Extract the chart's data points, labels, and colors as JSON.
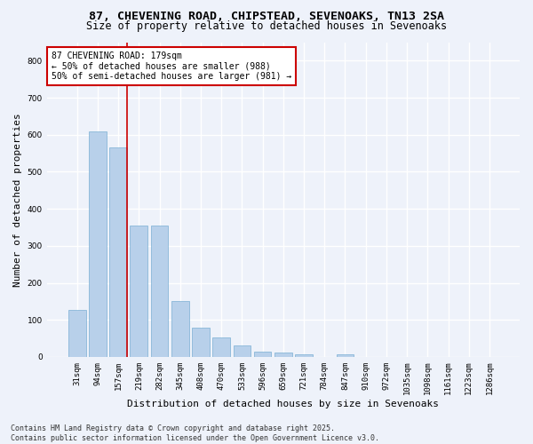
{
  "title_line1": "87, CHEVENING ROAD, CHIPSTEAD, SEVENOAKS, TN13 2SA",
  "title_line2": "Size of property relative to detached houses in Sevenoaks",
  "xlabel": "Distribution of detached houses by size in Sevenoaks",
  "ylabel": "Number of detached properties",
  "footer_line1": "Contains HM Land Registry data © Crown copyright and database right 2025.",
  "footer_line2": "Contains public sector information licensed under the Open Government Licence v3.0.",
  "categories": [
    "31sqm",
    "94sqm",
    "157sqm",
    "219sqm",
    "282sqm",
    "345sqm",
    "408sqm",
    "470sqm",
    "533sqm",
    "596sqm",
    "659sqm",
    "721sqm",
    "784sqm",
    "847sqm",
    "910sqm",
    "972sqm",
    "1035sqm",
    "1098sqm",
    "1161sqm",
    "1223sqm",
    "1286sqm"
  ],
  "values": [
    128,
    608,
    565,
    355,
    355,
    150,
    78,
    53,
    32,
    15,
    13,
    7,
    0,
    6,
    0,
    0,
    0,
    0,
    0,
    0,
    0
  ],
  "bar_color": "#b8d0ea",
  "bar_edgecolor": "#7aafd4",
  "bar_linewidth": 0.5,
  "property_line_bar_index": 2,
  "annotation_text": "87 CHEVENING ROAD: 179sqm\n← 50% of detached houses are smaller (988)\n50% of semi-detached houses are larger (981) →",
  "annotation_box_facecolor": "#ffffff",
  "annotation_box_edgecolor": "#cc0000",
  "vline_color": "#cc0000",
  "vline_linewidth": 1.2,
  "background_color": "#eef2fa",
  "plot_background_color": "#eef2fa",
  "grid_color": "#ffffff",
  "ylim": [
    0,
    850
  ],
  "yticks": [
    0,
    100,
    200,
    300,
    400,
    500,
    600,
    700,
    800
  ],
  "title_fontsize": 9.5,
  "subtitle_fontsize": 8.5,
  "xlabel_fontsize": 8,
  "ylabel_fontsize": 8,
  "tick_fontsize": 6.5,
  "annotation_fontsize": 7,
  "footer_fontsize": 6
}
